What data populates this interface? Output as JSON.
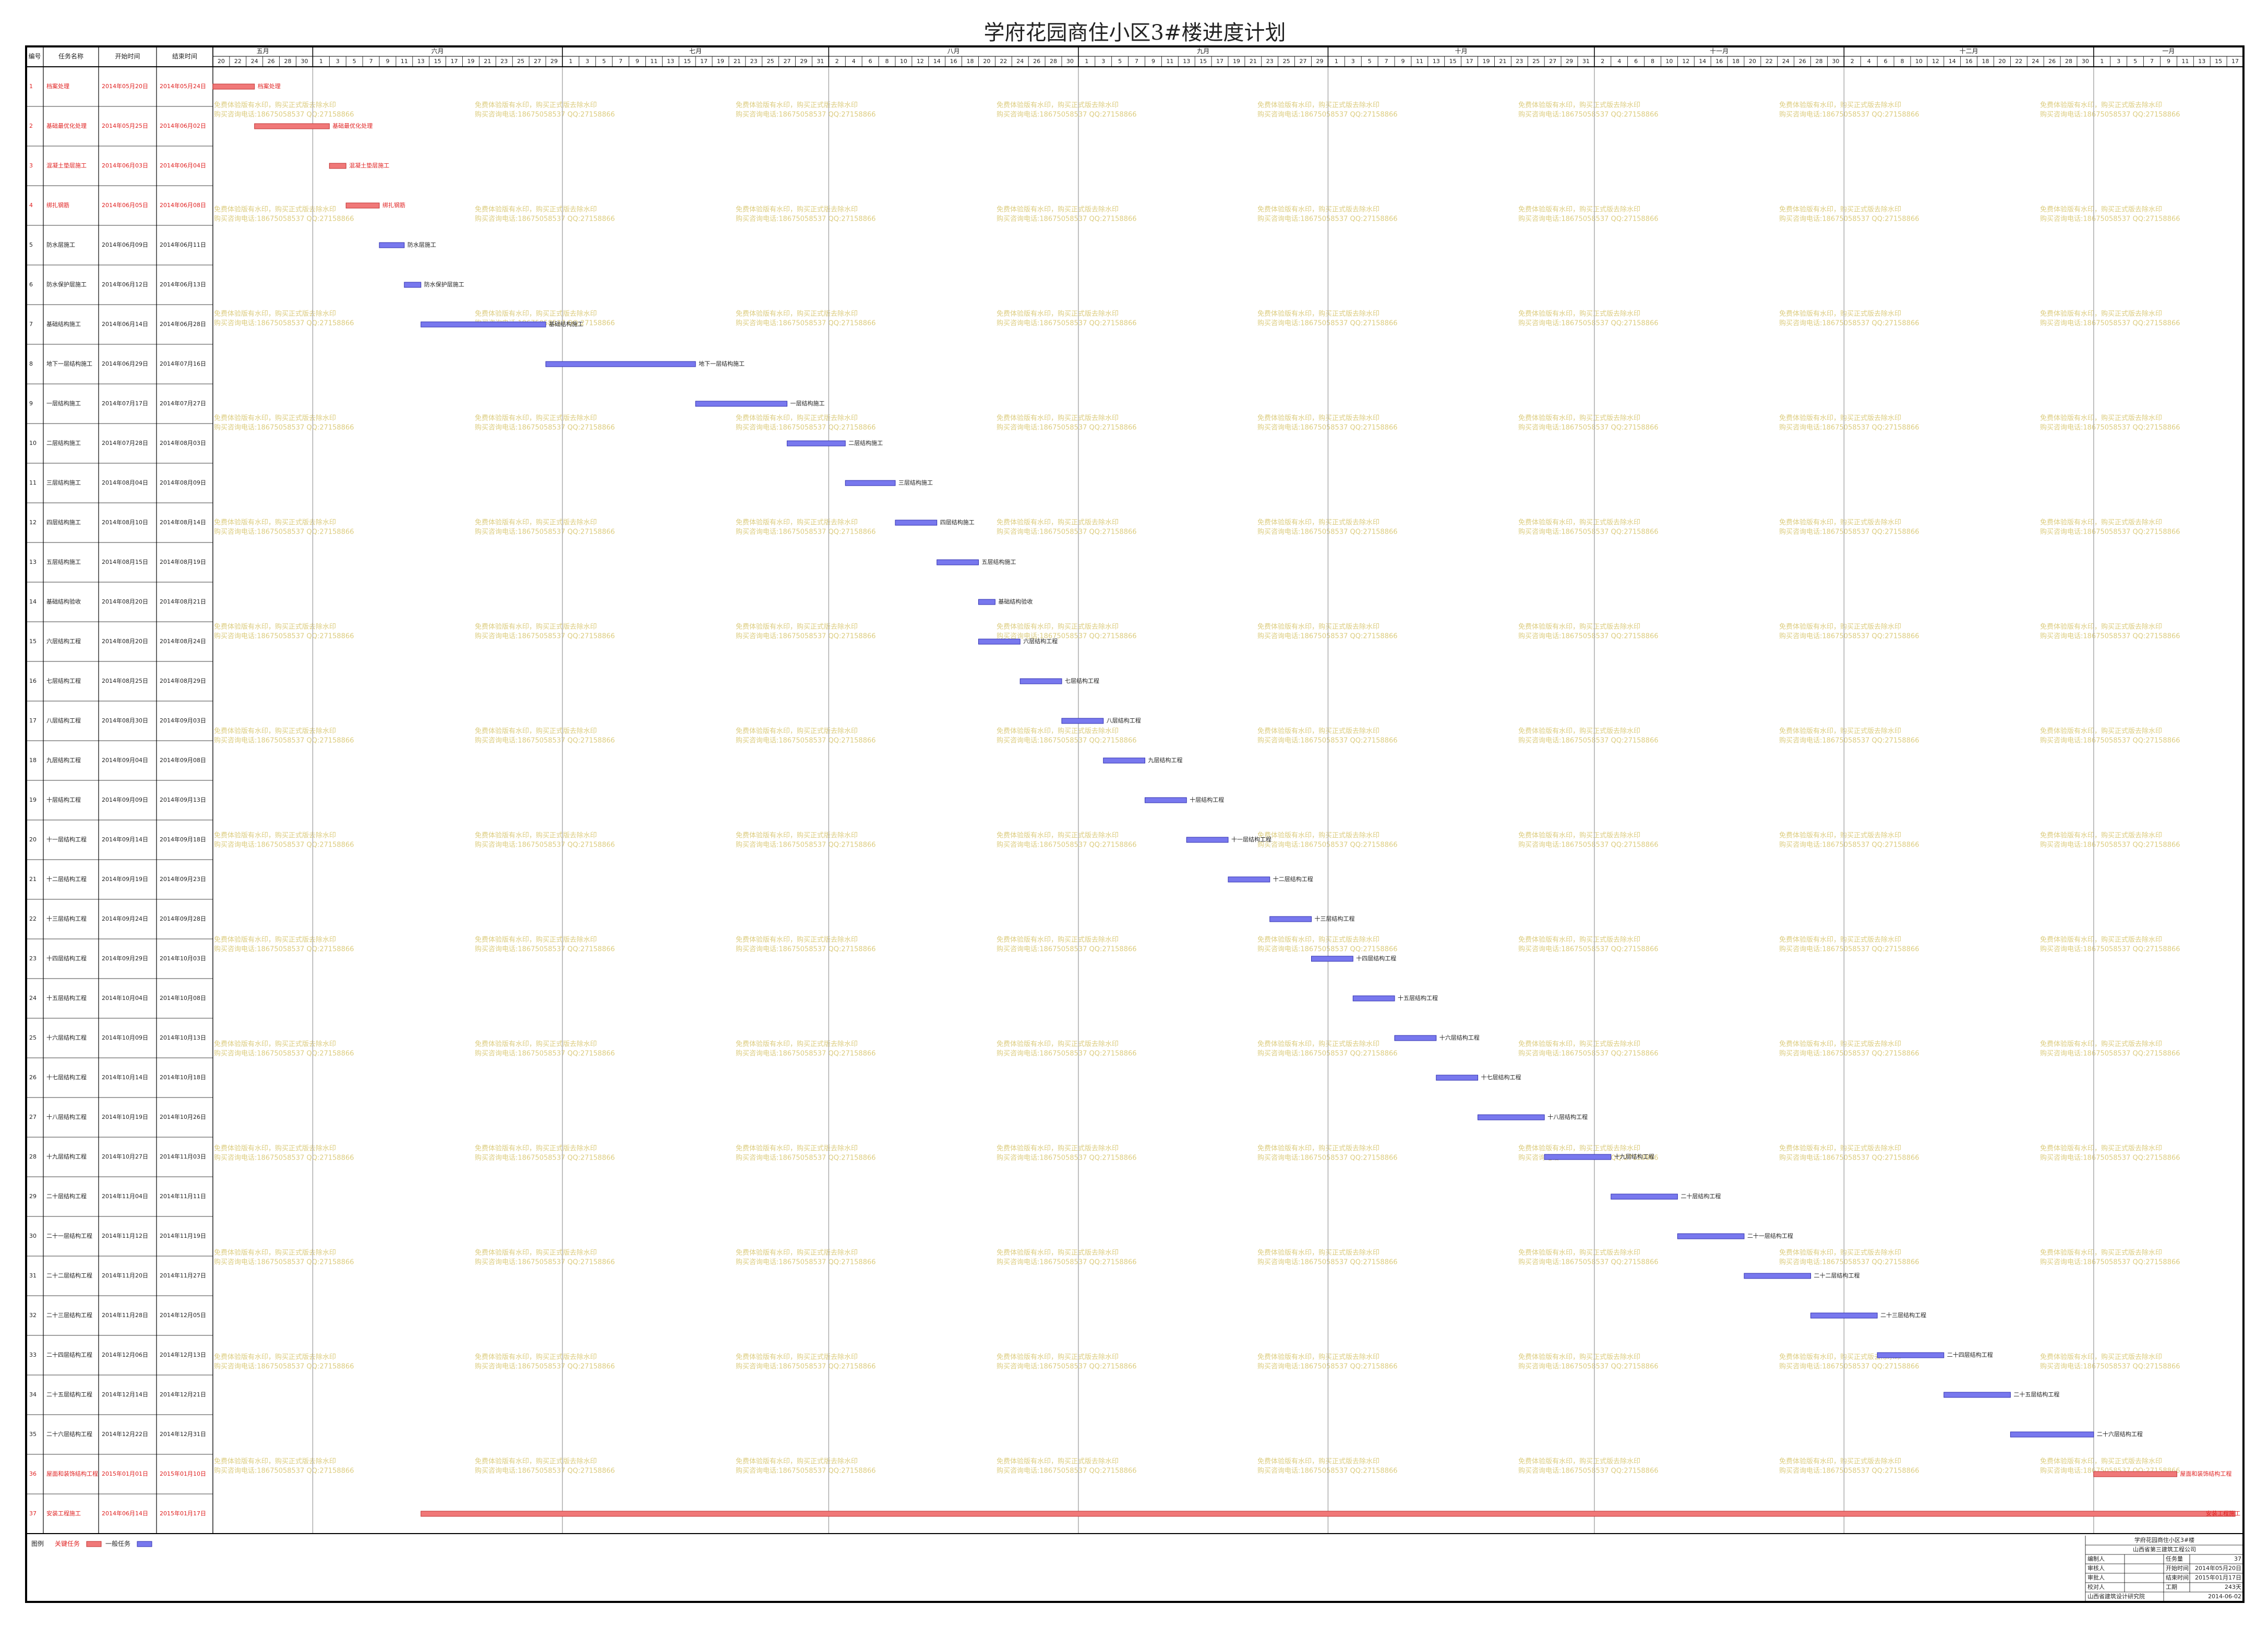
{
  "title": "学府花园商住小区3#楼进度计划",
  "table_headers": [
    "编号",
    "任务名称",
    "开始时间",
    "结束时间"
  ],
  "timeline": {
    "months": [
      {
        "label": "五月",
        "days": [
          20,
          22,
          24,
          26,
          28,
          30
        ]
      },
      {
        "label": "六月",
        "days": [
          1,
          3,
          5,
          7,
          9,
          11,
          13,
          15,
          17,
          19,
          21,
          23,
          25,
          27,
          29
        ]
      },
      {
        "label": "七月",
        "days": [
          1,
          3,
          5,
          7,
          9,
          11,
          13,
          15,
          17,
          19,
          21,
          23,
          25,
          27,
          29,
          31
        ]
      },
      {
        "label": "八月",
        "days": [
          2,
          4,
          6,
          8,
          10,
          12,
          14,
          16,
          18,
          20,
          22,
          24,
          26,
          28,
          30
        ]
      },
      {
        "label": "九月",
        "days": [
          1,
          3,
          5,
          7,
          9,
          11,
          13,
          15,
          17,
          19,
          21,
          23,
          25,
          27,
          29
        ]
      },
      {
        "label": "十月",
        "days": [
          1,
          3,
          5,
          7,
          9,
          11,
          13,
          15,
          17,
          19,
          21,
          23,
          25,
          27,
          29,
          31
        ]
      },
      {
        "label": "十一月",
        "days": [
          2,
          4,
          6,
          8,
          10,
          12,
          14,
          16,
          18,
          20,
          22,
          24,
          26,
          28,
          30
        ]
      },
      {
        "label": "十二月",
        "days": [
          2,
          4,
          6,
          8,
          10,
          12,
          14,
          16,
          18,
          20,
          22,
          24,
          26,
          28,
          30
        ]
      },
      {
        "label": "一月",
        "days": [
          1,
          3,
          5,
          7,
          9,
          11,
          13,
          15,
          17
        ]
      }
    ]
  },
  "colors": {
    "critical": "#f07878",
    "normal": "#7878ee"
  },
  "tasks": [
    {
      "id": 1,
      "name": "档案处理",
      "start": "2014年05月20日",
      "end": "2014年05月24日",
      "critical": true
    },
    {
      "id": 2,
      "name": "基础最优化处理",
      "start": "2014年05月25日",
      "end": "2014年06月02日",
      "critical": true
    },
    {
      "id": 3,
      "name": "混凝土垫层施工",
      "start": "2014年06月03日",
      "end": "2014年06月04日",
      "critical": true
    },
    {
      "id": 4,
      "name": "绑扎钢筋",
      "start": "2014年06月05日",
      "end": "2014年06月08日",
      "critical": true
    },
    {
      "id": 5,
      "name": "防水层施工",
      "start": "2014年06月09日",
      "end": "2014年06月11日",
      "critical": false
    },
    {
      "id": 6,
      "name": "防水保护层施工",
      "start": "2014年06月12日",
      "end": "2014年06月13日",
      "critical": false
    },
    {
      "id": 7,
      "name": "基础结构施工",
      "start": "2014年06月14日",
      "end": "2014年06月28日",
      "critical": false
    },
    {
      "id": 8,
      "name": "地下一层结构施工",
      "start": "2014年06月29日",
      "end": "2014年07月16日",
      "critical": false
    },
    {
      "id": 9,
      "name": "一层结构施工",
      "start": "2014年07月17日",
      "end": "2014年07月27日",
      "critical": false
    },
    {
      "id": 10,
      "name": "二层结构施工",
      "start": "2014年07月28日",
      "end": "2014年08月03日",
      "critical": false
    },
    {
      "id": 11,
      "name": "三层结构施工",
      "start": "2014年08月04日",
      "end": "2014年08月09日",
      "critical": false
    },
    {
      "id": 12,
      "name": "四层结构施工",
      "start": "2014年08月10日",
      "end": "2014年08月14日",
      "critical": false
    },
    {
      "id": 13,
      "name": "五层结构施工",
      "start": "2014年08月15日",
      "end": "2014年08月19日",
      "critical": false
    },
    {
      "id": 14,
      "name": "基础结构验收",
      "start": "2014年08月20日",
      "end": "2014年08月21日",
      "critical": false
    },
    {
      "id": 15,
      "name": "六层结构工程",
      "start": "2014年08月20日",
      "end": "2014年08月24日",
      "critical": false
    },
    {
      "id": 16,
      "name": "七层结构工程",
      "start": "2014年08月25日",
      "end": "2014年08月29日",
      "critical": false
    },
    {
      "id": 17,
      "name": "八层结构工程",
      "start": "2014年08月30日",
      "end": "2014年09月03日",
      "critical": false
    },
    {
      "id": 18,
      "name": "九层结构工程",
      "start": "2014年09月04日",
      "end": "2014年09月08日",
      "critical": false
    },
    {
      "id": 19,
      "name": "十层结构工程",
      "start": "2014年09月09日",
      "end": "2014年09月13日",
      "critical": false
    },
    {
      "id": 20,
      "name": "十一层结构工程",
      "start": "2014年09月14日",
      "end": "2014年09月18日",
      "critical": false
    },
    {
      "id": 21,
      "name": "十二层结构工程",
      "start": "2014年09月19日",
      "end": "2014年09月23日",
      "critical": false
    },
    {
      "id": 22,
      "name": "十三层结构工程",
      "start": "2014年09月24日",
      "end": "2014年09月28日",
      "critical": false
    },
    {
      "id": 23,
      "name": "十四层结构工程",
      "start": "2014年09月29日",
      "end": "2014年10月03日",
      "critical": false
    },
    {
      "id": 24,
      "name": "十五层结构工程",
      "start": "2014年10月04日",
      "end": "2014年10月08日",
      "critical": false
    },
    {
      "id": 25,
      "name": "十六层结构工程",
      "start": "2014年10月09日",
      "end": "2014年10月13日",
      "critical": false
    },
    {
      "id": 26,
      "name": "十七层结构工程",
      "start": "2014年10月14日",
      "end": "2014年10月18日",
      "critical": false
    },
    {
      "id": 27,
      "name": "十八层结构工程",
      "start": "2014年10月19日",
      "end": "2014年10月26日",
      "critical": false
    },
    {
      "id": 28,
      "name": "十九层结构工程",
      "start": "2014年10月27日",
      "end": "2014年11月03日",
      "critical": false
    },
    {
      "id": 29,
      "name": "二十层结构工程",
      "start": "2014年11月04日",
      "end": "2014年11月11日",
      "critical": false
    },
    {
      "id": 30,
      "name": "二十一层结构工程",
      "start": "2014年11月12日",
      "end": "2014年11月19日",
      "critical": false
    },
    {
      "id": 31,
      "name": "二十二层结构工程",
      "start": "2014年11月20日",
      "end": "2014年11月27日",
      "critical": false
    },
    {
      "id": 32,
      "name": "二十三层结构工程",
      "start": "2014年11月28日",
      "end": "2014年12月05日",
      "critical": false
    },
    {
      "id": 33,
      "name": "二十四层结构工程",
      "start": "2014年12月06日",
      "end": "2014年12月13日",
      "critical": false
    },
    {
      "id": 34,
      "name": "二十五层结构工程",
      "start": "2014年12月14日",
      "end": "2014年12月21日",
      "critical": false
    },
    {
      "id": 35,
      "name": "二十六层结构工程",
      "start": "2014年12月22日",
      "end": "2014年12月31日",
      "critical": false
    },
    {
      "id": 36,
      "name": "屋面和装饰结构工程",
      "start": "2015年01月01日",
      "end": "2015年01月10日",
      "critical": true
    },
    {
      "id": 37,
      "name": "安装工程施工",
      "start": "2014年06月14日",
      "end": "2015年01月17日",
      "critical": true
    }
  ],
  "watermark": [
    "免费体验版有水印，购买正式版去除水印",
    "购买咨询电话:18675058537 QQ:27158866"
  ],
  "legend": {
    "label": "图例",
    "critical": "关键任务",
    "normal": "一般任务"
  },
  "info": {
    "project": "学府花园商住小区3#楼",
    "company": "山西省第三建筑工程公司",
    "rows": [
      [
        "编制人",
        "任务量",
        "37"
      ],
      [
        "审核人",
        "开始时间",
        "2014年05月20日"
      ],
      [
        "审批人",
        "结束时间",
        "2015年01月17日"
      ],
      [
        "校对人",
        "工期",
        "243天"
      ]
    ],
    "footer": [
      "山西省建筑设计研究院",
      "2014-06-02"
    ]
  }
}
